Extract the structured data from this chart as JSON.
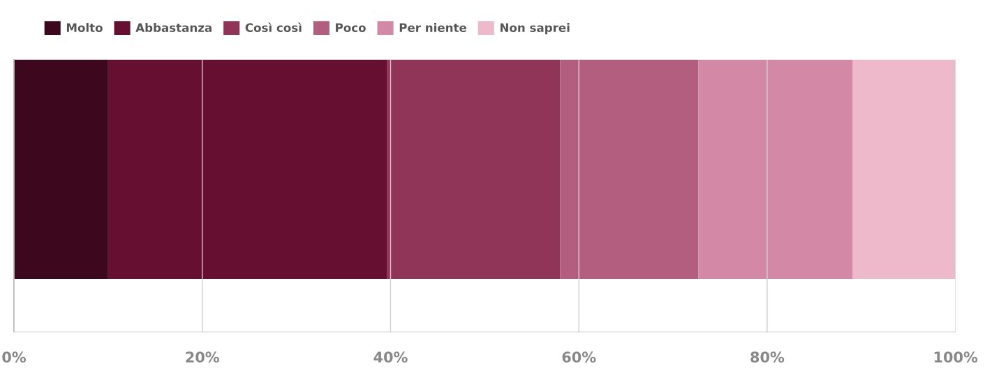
{
  "chart_data": {
    "type": "bar",
    "orientation": "horizontal",
    "stacked": true,
    "categories": [
      null
    ],
    "series": [
      {
        "name": "Molto",
        "color": "#3d081e",
        "values": [
          10.0
        ]
      },
      {
        "name": "Abbastanza",
        "color": "#660f31",
        "values": [
          29.6
        ]
      },
      {
        "name": "Così così",
        "color": "#903558",
        "values": [
          18.4
        ]
      },
      {
        "name": "Poco",
        "color": "#b35e7e",
        "values": [
          14.7
        ]
      },
      {
        "name": "Per niente",
        "color": "#d388a5",
        "values": [
          16.4
        ]
      },
      {
        "name": "Non saprei",
        "color": "#eeb9ca",
        "values": [
          10.9
        ]
      }
    ],
    "xlim": [
      0,
      100
    ],
    "xticks": [
      {
        "value": 0,
        "label": "0%"
      },
      {
        "value": 20,
        "label": "20%"
      },
      {
        "value": 40,
        "label": "40%"
      },
      {
        "value": 60,
        "label": "60%"
      },
      {
        "value": 80,
        "label": "80%"
      },
      {
        "value": 100,
        "label": "100%"
      }
    ],
    "grid": "x",
    "legend": "top left",
    "tick_labels": "x"
  }
}
